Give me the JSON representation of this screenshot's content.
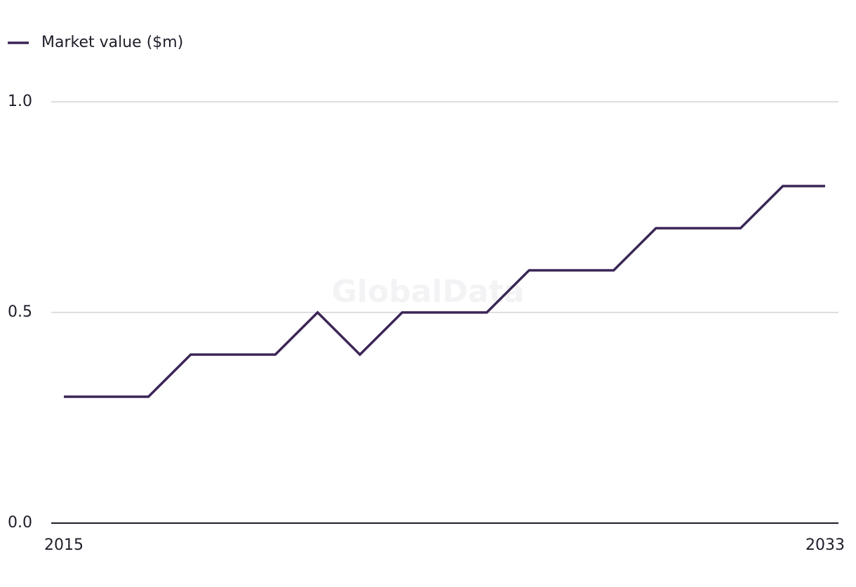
{
  "chart_data": {
    "type": "line",
    "watermark": "GlobalData",
    "x": [
      2015,
      2016,
      2017,
      2018,
      2019,
      2020,
      2021,
      2022,
      2023,
      2024,
      2025,
      2026,
      2027,
      2028,
      2029,
      2030,
      2031,
      2032,
      2033
    ],
    "series": [
      {
        "name": "Market value ($m)",
        "color": "#3b2556",
        "values": [
          0.3,
          0.3,
          0.3,
          0.4,
          0.4,
          0.4,
          0.5,
          0.4,
          0.5,
          0.5,
          0.5,
          0.6,
          0.6,
          0.6,
          0.7,
          0.7,
          0.7,
          0.8,
          0.8
        ]
      }
    ],
    "xlim": [
      2015,
      2033
    ],
    "xticks": [
      2015,
      2033
    ],
    "ylim": [
      0,
      1
    ],
    "yticks": [
      {
        "value": 0,
        "label": "0.0"
      },
      0.5,
      {
        "value": 1,
        "label": "1.0"
      }
    ],
    "grid": true,
    "legend": "top-left"
  }
}
